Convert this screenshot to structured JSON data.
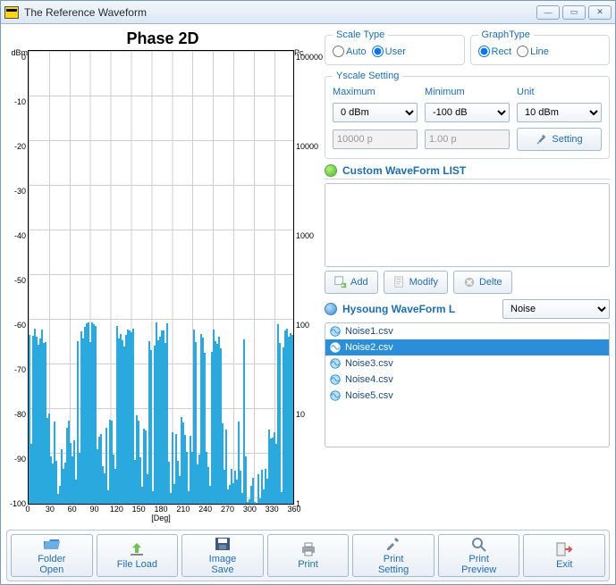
{
  "window": {
    "title": "The Reference Waveform"
  },
  "chart": {
    "title": "Phase 2D",
    "left_axis": {
      "label": "dBm",
      "ticks": [
        0,
        -10,
        -20,
        -30,
        -40,
        -50,
        -60,
        -70,
        -80,
        -90,
        -100
      ],
      "min": -100,
      "max": 0
    },
    "right_axis": {
      "label": "Pc",
      "ticks": [
        "100000",
        "",
        "10000",
        "",
        "1000",
        "",
        "100",
        "",
        "10",
        "",
        "1"
      ]
    },
    "x_axis": {
      "label": "[Deg]",
      "ticks": [
        0,
        30,
        60,
        90,
        120,
        150,
        180,
        210,
        240,
        270,
        300,
        330,
        360
      ],
      "min": 0,
      "max": 360
    },
    "colors": {
      "bar": "#2aa9df",
      "grid": "#cfcfcf",
      "bg": "#ffffff"
    }
  },
  "controls": {
    "scale_type": {
      "legend": "Scale Type",
      "auto_label": "Auto",
      "user_label": "User",
      "value": "user"
    },
    "graph_type": {
      "legend": "GraphType",
      "rect_label": "Rect",
      "line_label": "Line",
      "value": "rect"
    },
    "yscale": {
      "legend": "Yscale Setting",
      "max_label": "Maximum",
      "max_value": "0 dBm",
      "min_label": "Minimum",
      "min_value": "-100 dB",
      "unit_label": "Unit",
      "unit_value": "10 dBm",
      "raw1": "10000 p",
      "raw2": "1.00 p",
      "setting_btn": "Setting"
    }
  },
  "custom_list": {
    "title": "Custom WaveForm LIST",
    "add": "Add",
    "modify": "Modify",
    "delete": "Delte"
  },
  "hysoung": {
    "title": "Hysoung WaveForm L",
    "dropdown": "Noise",
    "items": [
      {
        "label": "Noise1.csv",
        "selected": false
      },
      {
        "label": "Noise2.csv",
        "selected": true
      },
      {
        "label": "Noise3.csv",
        "selected": false
      },
      {
        "label": "Noise4.csv",
        "selected": false
      },
      {
        "label": "Noise5.csv",
        "selected": false
      }
    ]
  },
  "toolbar": {
    "folder_open": "Folder\nOpen",
    "file_load": "File Load",
    "image_save": "Image\nSave",
    "print": "Print",
    "print_setting": "Print\nSetting",
    "print_preview": "Print\nPreview",
    "exit": "Exit"
  }
}
